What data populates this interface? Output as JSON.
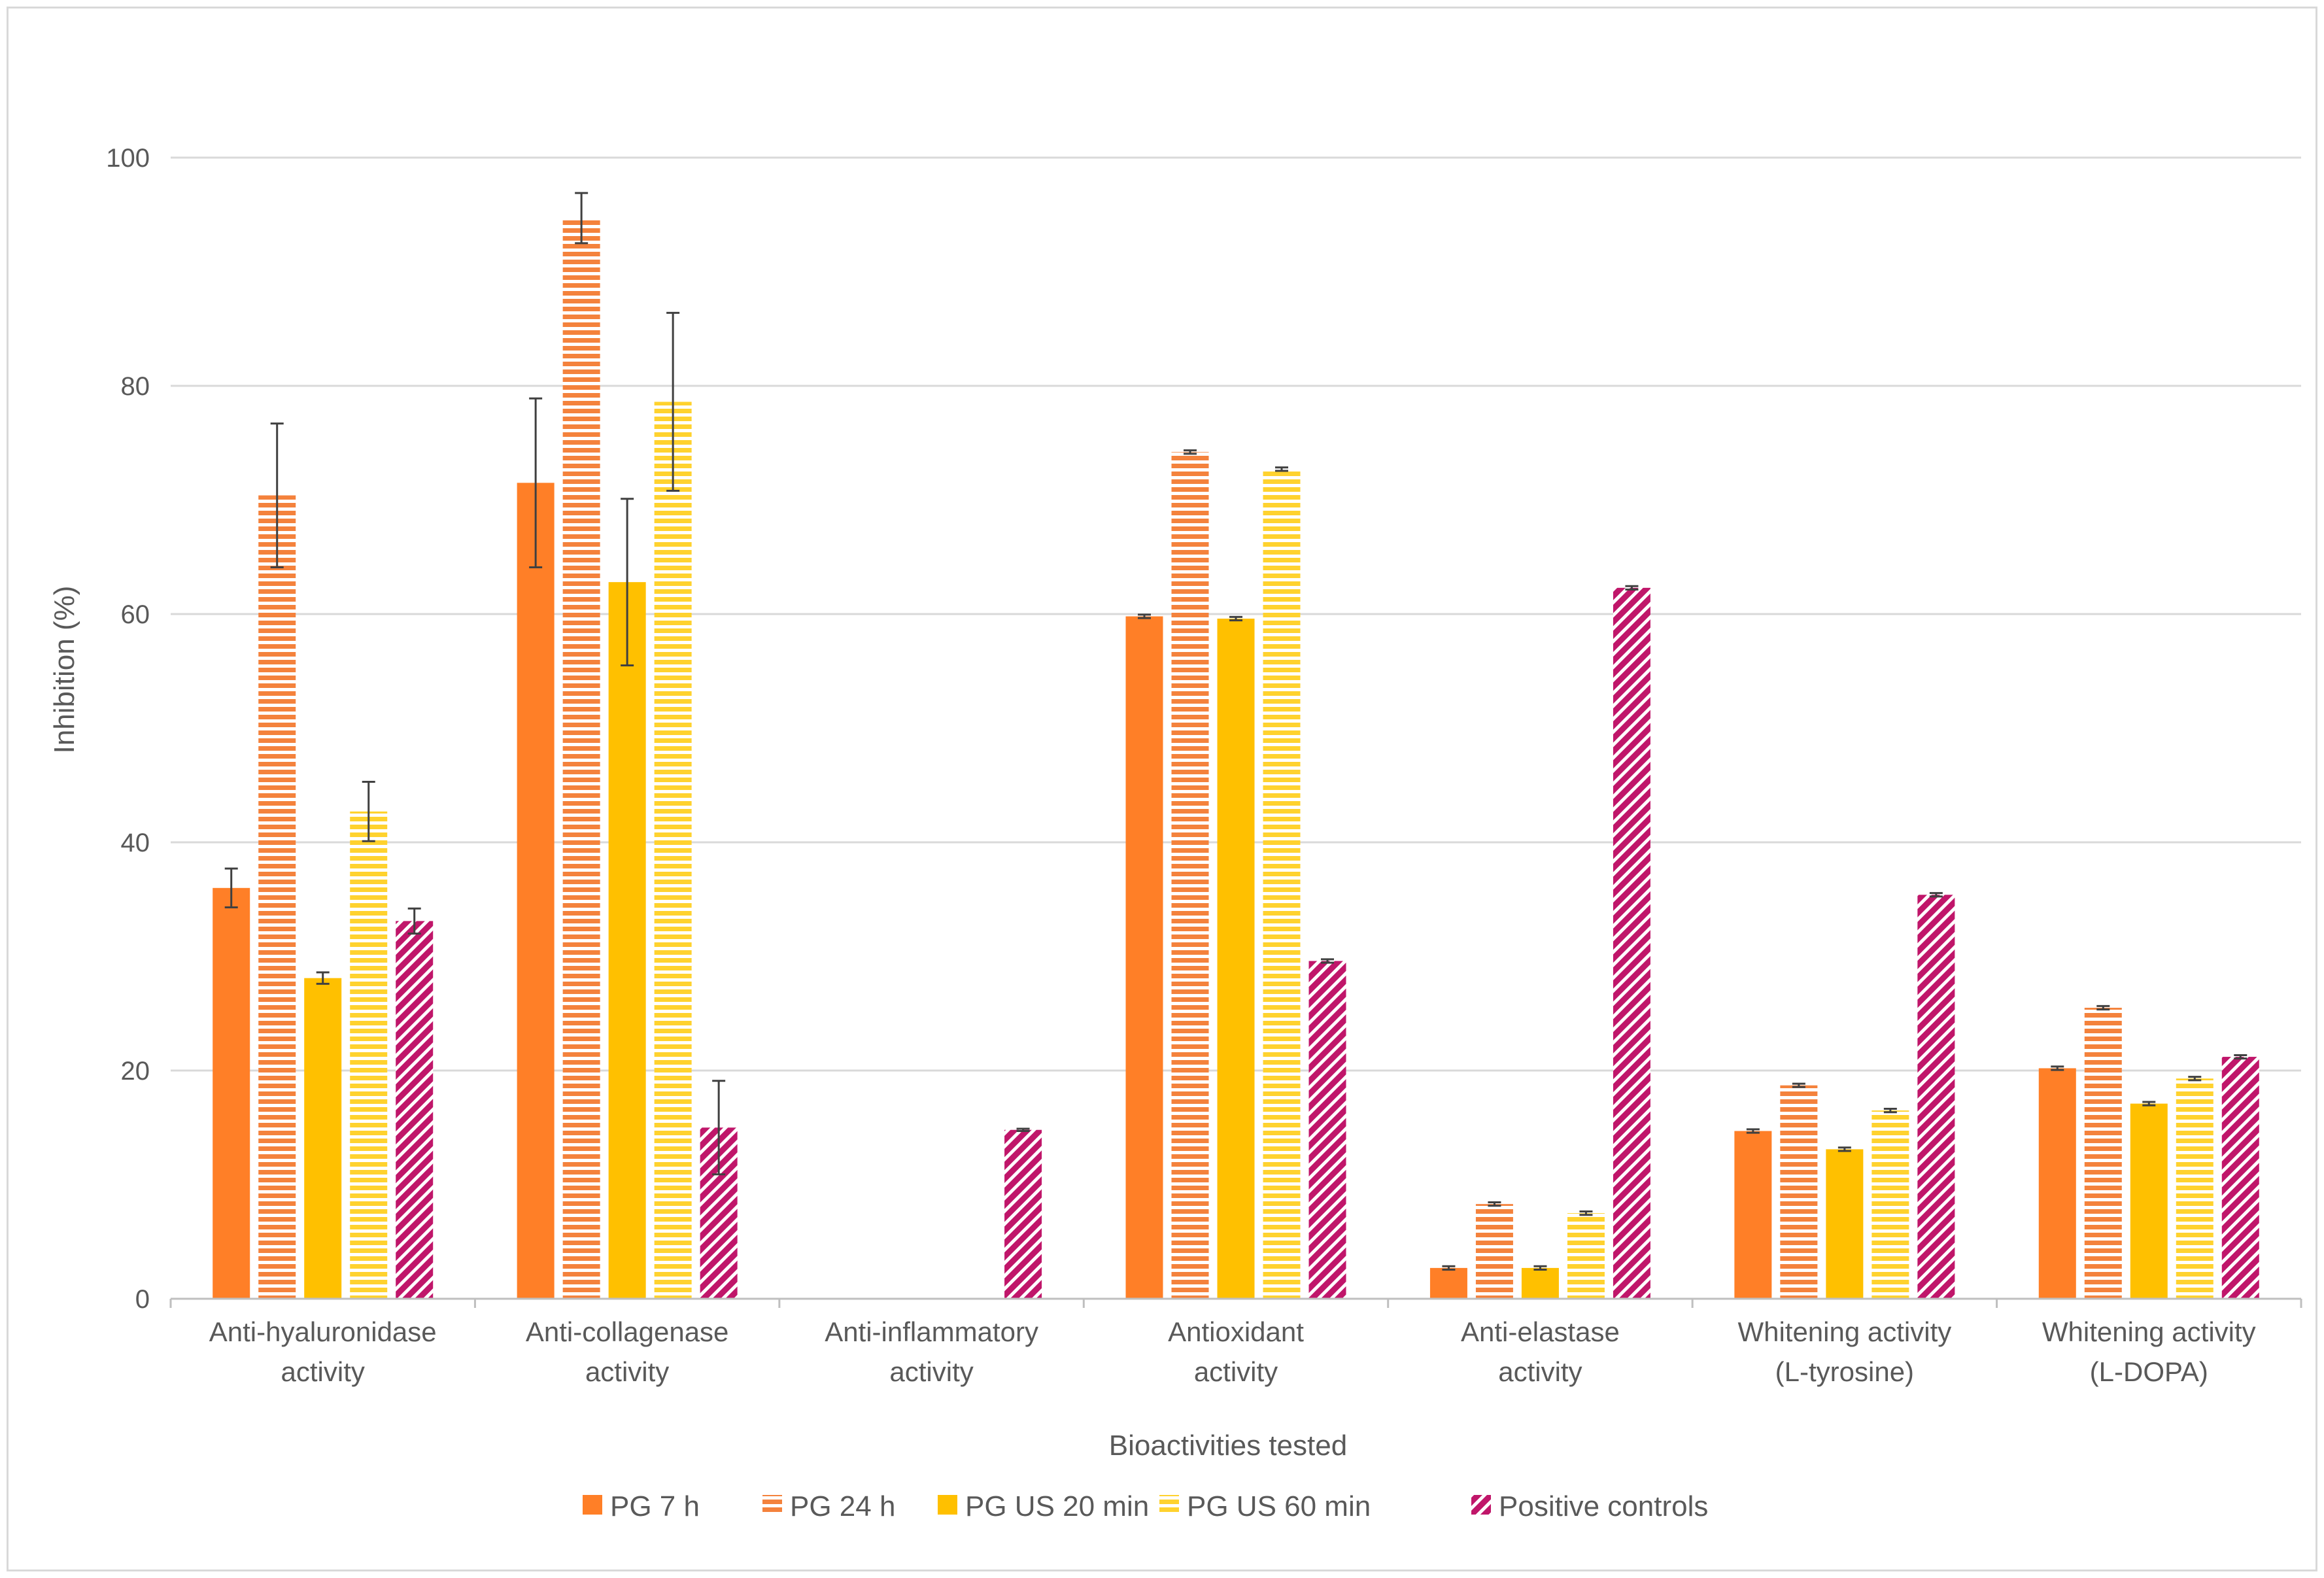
{
  "chart_data": {
    "type": "bar",
    "title": "",
    "xlabel": "Bioactivities tested",
    "ylabel": "Inhibition (%)",
    "ylim": [
      0,
      100
    ],
    "yticks": [
      "0",
      "20",
      "40",
      "60",
      "80",
      "100"
    ],
    "grid": true,
    "legend_position": "bottom",
    "categories": [
      [
        "Anti-hyaluronidase",
        "activity"
      ],
      [
        "Anti-collagenase",
        "activity"
      ],
      [
        "Anti-inflammatory",
        "activity"
      ],
      [
        "Antioxidant",
        "activity"
      ],
      [
        "Anti-elastase",
        "activity"
      ],
      [
        "Whitening activity",
        "(L-tyrosine)"
      ],
      [
        "Whitening activity",
        "(L-DOPA)"
      ]
    ],
    "series": [
      {
        "name": "PG 7 h",
        "color": "#FF7F27",
        "pattern": "solid",
        "values": [
          36.0,
          71.5,
          null,
          59.8,
          2.7,
          14.7,
          20.2
        ],
        "errors": [
          1.7,
          7.4,
          null,
          0.15,
          0.15,
          0.15,
          0.15
        ]
      },
      {
        "name": "PG 24 h",
        "color": "#F4823C",
        "pattern": "horizontal-stripes",
        "values": [
          70.4,
          94.7,
          null,
          74.2,
          8.3,
          18.7,
          25.5
        ],
        "errors": [
          6.3,
          2.2,
          null,
          0.15,
          0.15,
          0.15,
          0.15
        ]
      },
      {
        "name": "PG US 20 min",
        "color": "#FFC000",
        "pattern": "solid",
        "values": [
          28.1,
          62.8,
          null,
          59.6,
          2.7,
          13.1,
          17.1
        ],
        "errors": [
          0.5,
          7.3,
          null,
          0.15,
          0.15,
          0.15,
          0.15
        ]
      },
      {
        "name": "PG US 60 min",
        "color": "#FFD22E",
        "pattern": "horizontal-stripes",
        "values": [
          42.7,
          78.6,
          null,
          72.7,
          7.5,
          16.5,
          19.3
        ],
        "errors": [
          2.6,
          7.8,
          null,
          0.15,
          0.15,
          0.15,
          0.15
        ]
      },
      {
        "name": "Positive controls",
        "color": "#C0166A",
        "pattern": "diagonal-stripes",
        "values": [
          33.1,
          15.0,
          14.8,
          29.6,
          62.3,
          35.4,
          21.2
        ],
        "errors": [
          1.1,
          4.1,
          0.1,
          0.15,
          0.15,
          0.15,
          0.15
        ]
      }
    ]
  }
}
